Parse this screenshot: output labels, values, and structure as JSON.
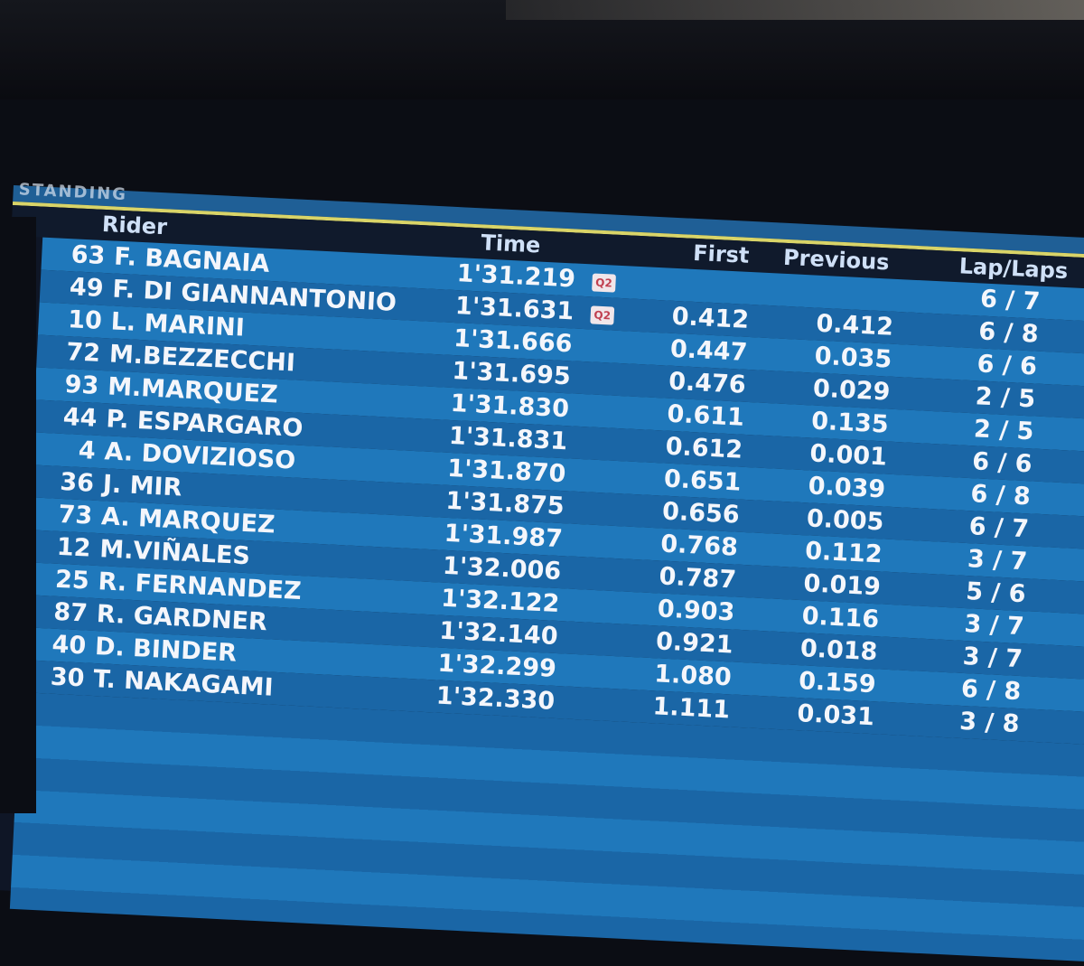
{
  "header": {
    "title": "STANDING",
    "columns": {
      "rider": "Rider",
      "time": "Time",
      "first": "First",
      "previous": "Previous",
      "laps": "Lap/Laps"
    }
  },
  "colors": {
    "row_light": "#1f78bb",
    "row_dark": "#1a66a6",
    "accent_line": "#d9d468",
    "position_up": "#7ed37a"
  },
  "rows": [
    {
      "num": "63",
      "name": "F. BAGNAIA",
      "time": "1'31.219",
      "badge": "Q2",
      "first": "",
      "previous": "",
      "laps": "6 / 7"
    },
    {
      "num": "49",
      "name": "F. DI GIANNANTONIO",
      "time": "1'31.631",
      "badge": "Q2",
      "first": "0.412",
      "previous": "0.412",
      "laps": "6 / 8"
    },
    {
      "num": "10",
      "name": "L. MARINI",
      "time": "1'31.666",
      "first": "0.447",
      "previous": "0.035",
      "laps": "6 / 6"
    },
    {
      "num": "72",
      "name": "M.BEZZECCHI",
      "time": "1'31.695",
      "first": "0.476",
      "previous": "0.029",
      "laps": "2 / 5"
    },
    {
      "num": "93",
      "name": "M.MARQUEZ",
      "time": "1'31.830",
      "first": "0.611",
      "previous": "0.135",
      "laps": "2 / 5"
    },
    {
      "num": "44",
      "name": "P. ESPARGARO",
      "time": "1'31.831",
      "first": "0.612",
      "previous": "0.001",
      "laps": "6 / 6",
      "arrow": "up-arrow-icon"
    },
    {
      "num": "4",
      "name": "A. DOVIZIOSO",
      "time": "1'31.870",
      "first": "0.651",
      "previous": "0.039",
      "laps": "6 / 8"
    },
    {
      "num": "36",
      "name": "J. MIR",
      "time": "1'31.875",
      "first": "0.656",
      "previous": "0.005",
      "laps": "6 / 7"
    },
    {
      "num": "73",
      "name": "A. MARQUEZ",
      "time": "1'31.987",
      "first": "0.768",
      "previous": "0.112",
      "laps": "3 / 7"
    },
    {
      "num": "12",
      "name": "M.VIÑALES",
      "time": "1'32.006",
      "first": "0.787",
      "previous": "0.019",
      "laps": "5 / 6"
    },
    {
      "num": "25",
      "name": "R. FERNANDEZ",
      "time": "1'32.122",
      "first": "0.903",
      "previous": "0.116",
      "laps": "3 / 7"
    },
    {
      "num": "87",
      "name": "R. GARDNER",
      "time": "1'32.140",
      "first": "0.921",
      "previous": "0.018",
      "laps": "3 / 7"
    },
    {
      "num": "40",
      "name": "D. BINDER",
      "time": "1'32.299",
      "first": "1.080",
      "previous": "0.159",
      "laps": "6 / 8"
    },
    {
      "num": "30",
      "name": "T. NAKAGAMI",
      "time": "1'32.330",
      "first": "1.111",
      "previous": "0.031",
      "laps": "3 / 8"
    }
  ]
}
